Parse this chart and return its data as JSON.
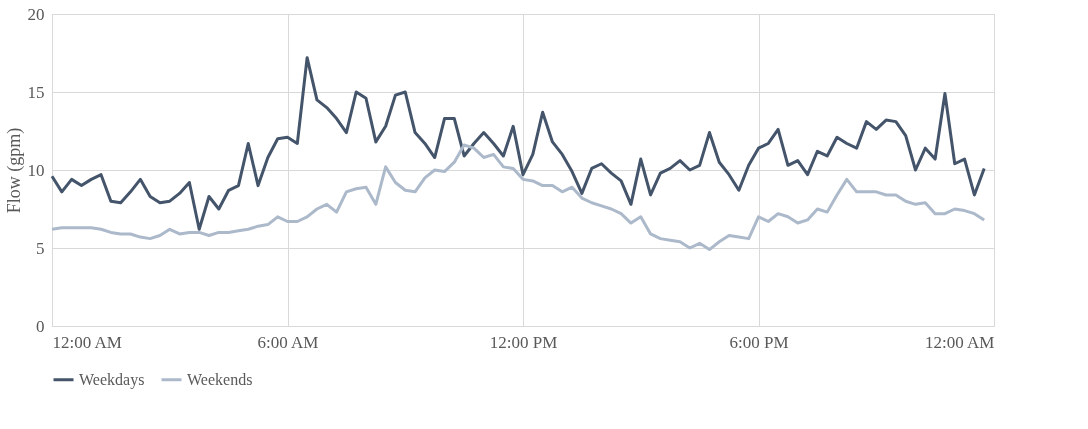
{
  "chart_data": {
    "type": "line",
    "ylabel": "Flow (gpm)",
    "x": [
      0,
      0.25,
      0.5,
      0.75,
      1,
      1.25,
      1.5,
      1.75,
      2,
      2.25,
      2.5,
      2.75,
      3,
      3.25,
      3.5,
      3.75,
      4,
      4.25,
      4.5,
      4.75,
      5,
      5.25,
      5.5,
      5.75,
      6,
      6.25,
      6.5,
      6.75,
      7,
      7.25,
      7.5,
      7.75,
      8,
      8.25,
      8.5,
      8.75,
      9,
      9.25,
      9.5,
      9.75,
      10,
      10.25,
      10.5,
      10.75,
      11,
      11.25,
      11.5,
      11.75,
      12,
      12.25,
      12.5,
      12.75,
      13,
      13.25,
      13.5,
      13.75,
      14,
      14.25,
      14.5,
      14.75,
      15,
      15.25,
      15.5,
      15.75,
      16,
      16.25,
      16.5,
      16.75,
      17,
      17.25,
      17.5,
      17.75,
      18,
      18.25,
      18.5,
      18.75,
      19,
      19.25,
      19.5,
      19.75,
      20,
      20.25,
      20.5,
      20.75,
      21,
      21.25,
      21.5,
      21.75,
      22,
      22.25,
      22.5,
      22.75,
      23,
      23.25,
      23.5,
      23.75
    ],
    "series": [
      {
        "name": "Weekdays",
        "color": "#44546a",
        "values": [
          9.6,
          8.6,
          9.4,
          9.0,
          9.4,
          9.7,
          8.0,
          7.9,
          8.6,
          9.4,
          8.3,
          7.9,
          8.0,
          8.5,
          9.2,
          6.2,
          8.3,
          7.5,
          8.7,
          9.0,
          11.7,
          9.0,
          10.8,
          12.0,
          12.1,
          11.7,
          17.2,
          14.5,
          14.0,
          13.3,
          12.4,
          15.0,
          14.6,
          11.8,
          12.8,
          14.8,
          15.0,
          12.4,
          11.7,
          10.8,
          13.3,
          13.3,
          10.9,
          11.7,
          12.4,
          11.7,
          10.9,
          12.8,
          9.7,
          11.0,
          13.7,
          11.8,
          11.0,
          9.9,
          8.5,
          10.1,
          10.4,
          9.8,
          9.3,
          7.8,
          10.7,
          8.4,
          9.8,
          10.1,
          10.6,
          10.0,
          10.3,
          12.4,
          10.5,
          9.7,
          8.7,
          10.3,
          11.4,
          11.7,
          12.6,
          10.3,
          10.6,
          9.7,
          11.2,
          10.9,
          12.1,
          11.7,
          11.4,
          13.1,
          12.6,
          13.2,
          13.1,
          12.2,
          10.0,
          11.4,
          10.7,
          14.9,
          10.4,
          10.7,
          8.4,
          10.1
        ]
      },
      {
        "name": "Weekends",
        "color": "#acb9ca",
        "values": [
          6.2,
          6.3,
          6.3,
          6.3,
          6.3,
          6.2,
          6.0,
          5.9,
          5.9,
          5.7,
          5.6,
          5.8,
          6.2,
          5.9,
          6.0,
          6.0,
          5.8,
          6.0,
          6.0,
          6.1,
          6.2,
          6.4,
          6.5,
          7.0,
          6.7,
          6.7,
          7.0,
          7.5,
          7.8,
          7.3,
          8.6,
          8.8,
          8.9,
          7.8,
          10.2,
          9.2,
          8.7,
          8.6,
          9.5,
          10.0,
          9.9,
          10.5,
          11.6,
          11.4,
          10.8,
          11.0,
          10.2,
          10.1,
          9.4,
          9.3,
          9.0,
          9.0,
          8.6,
          8.9,
          8.2,
          7.9,
          7.7,
          7.5,
          7.2,
          6.6,
          7.0,
          5.9,
          5.6,
          5.5,
          5.4,
          5.0,
          5.3,
          4.9,
          5.4,
          5.8,
          5.7,
          5.6,
          7.0,
          6.7,
          7.2,
          7.0,
          6.6,
          6.8,
          7.5,
          7.3,
          8.4,
          9.4,
          8.6,
          8.6,
          8.6,
          8.4,
          8.4,
          8.0,
          7.8,
          7.9,
          7.2,
          7.2,
          7.5,
          7.4,
          7.2,
          6.8
        ]
      }
    ],
    "xlim": [
      0,
      24
    ],
    "xticks": [
      {
        "value": 0,
        "label": "12:00 AM"
      },
      {
        "value": 6,
        "label": "6:00 AM"
      },
      {
        "value": 12,
        "label": "12:00 PM"
      },
      {
        "value": 18,
        "label": "6:00 PM"
      },
      {
        "value": 24,
        "label": "12:00 AM"
      }
    ],
    "ylim": [
      0,
      20
    ],
    "yticks": [
      0,
      5,
      10,
      15,
      20
    ],
    "grid": true,
    "legend": "bottom",
    "marker": "none",
    "line_style": "solid"
  }
}
